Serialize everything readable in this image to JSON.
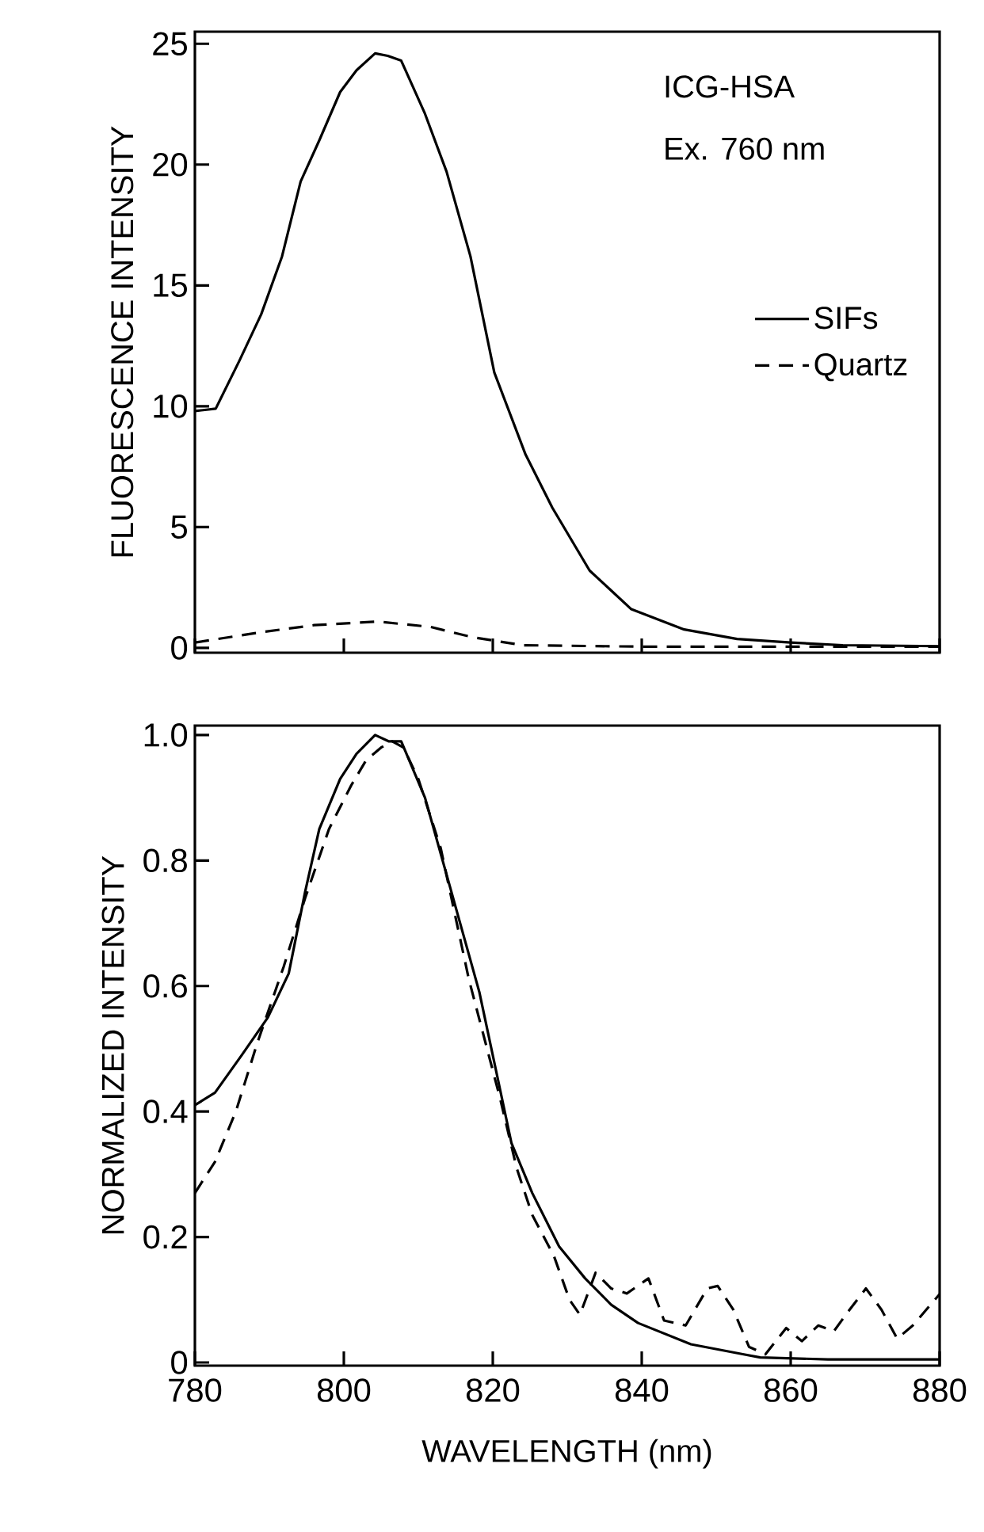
{
  "chart_data": [
    {
      "type": "line",
      "ylabel": "FLUORESCENCE INTENSITY",
      "annotations": [
        "ICG-HSA",
        "Ex. 760 nm"
      ],
      "xlim": [
        780,
        880
      ],
      "xticks": [
        780,
        800,
        820,
        840,
        860,
        880
      ],
      "ylim": [
        -0.2,
        25.5
      ],
      "yticks": [
        0,
        5,
        10,
        15,
        20,
        25
      ],
      "tick_labels": "y",
      "legend": "right",
      "series": [
        {
          "name": "SIFs",
          "color": "#000000",
          "line_style": "solid",
          "x": [
            780,
            782.8,
            786,
            788.9,
            791.7,
            794.2,
            796.7,
            799.5,
            801.7,
            804.2,
            805.9,
            807.7,
            810.9,
            813.8,
            817,
            820.2,
            824.4,
            828,
            833,
            838.6,
            845.7,
            852.8,
            860,
            867,
            880
          ],
          "values": [
            9.8,
            9.9,
            11.9,
            13.8,
            16.2,
            19.3,
            21.0,
            23.0,
            23.9,
            24.6,
            24.5,
            24.3,
            22.1,
            19.7,
            16.2,
            11.4,
            8.0,
            5.8,
            3.2,
            1.6,
            0.76,
            0.37,
            0.22,
            0.11,
            0.07
          ]
        },
        {
          "name": "Quartz",
          "color": "#000000",
          "line_style": "dashed",
          "x": [
            780,
            788.9,
            796,
            804.5,
            811.6,
            817.3,
            824,
            840,
            860,
            880
          ],
          "values": [
            0.22,
            0.65,
            0.94,
            1.09,
            0.87,
            0.44,
            0.11,
            0.05,
            0.05,
            0.05
          ]
        }
      ]
    },
    {
      "type": "line",
      "xlabel": "WAVELENGTH (nm)",
      "ylabel": "NORMALIZED INTENSITY",
      "xlim": [
        780,
        880
      ],
      "xticks": [
        780,
        800,
        820,
        840,
        860,
        880
      ],
      "ylim": [
        -0.005,
        1.015
      ],
      "yticks": [
        0,
        0.2,
        0.4,
        0.6,
        0.8,
        {
          "value": 1,
          "label": "1.0"
        }
      ],
      "series": [
        {
          "color": "#000000",
          "line_style": "solid",
          "x": [
            780,
            782.7,
            786.3,
            789.8,
            792.6,
            794.8,
            796.7,
            799.5,
            801.7,
            804.2,
            806,
            807.7,
            810.9,
            814.3,
            818.2,
            822.5,
            825.3,
            828.9,
            832.4,
            835.9,
            839.5,
            846.6,
            853.7,
            855.9,
            865,
            880
          ],
          "values": [
            0.41,
            0.43,
            0.49,
            0.55,
            0.62,
            0.75,
            0.85,
            0.93,
            0.97,
            1.0,
            0.99,
            0.99,
            0.9,
            0.756,
            0.59,
            0.35,
            0.27,
            0.185,
            0.134,
            0.092,
            0.063,
            0.029,
            0.013,
            0.008,
            0.005,
            0.005
          ]
        },
        {
          "color": "#000000",
          "line_style": "dashed",
          "x": [
            780,
            782.7,
            785.5,
            788.4,
            791.9,
            794.8,
            798,
            801,
            803,
            805,
            806.5,
            808,
            810,
            813,
            816.8,
            821,
            823.2,
            825.3,
            828.2,
            830.3,
            831.7,
            833.8,
            835.9,
            838,
            840.9,
            843,
            845.9,
            848.8,
            850.2,
            852.3,
            854.4,
            856.6,
            859.4,
            861.5,
            863.7,
            865.8,
            867.9,
            870.1,
            872.2,
            874.3,
            876.4,
            880
          ],
          "values": [
            0.27,
            0.32,
            0.4,
            0.51,
            0.63,
            0.74,
            0.85,
            0.92,
            0.96,
            0.98,
            0.99,
            0.98,
            0.93,
            0.82,
            0.61,
            0.42,
            0.31,
            0.235,
            0.17,
            0.1,
            0.076,
            0.143,
            0.118,
            0.11,
            0.134,
            0.067,
            0.059,
            0.118,
            0.122,
            0.084,
            0.025,
            0.013,
            0.055,
            0.034,
            0.059,
            0.05,
            0.084,
            0.118,
            0.084,
            0.038,
            0.059,
            0.109
          ]
        }
      ]
    }
  ]
}
